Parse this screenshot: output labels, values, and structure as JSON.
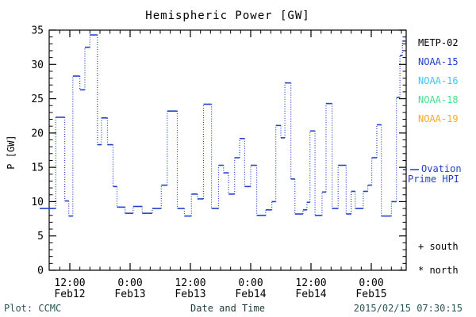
{
  "footer": {
    "left": "Plot: CCMC",
    "right": "2015/02/15 07:30:15"
  },
  "legend": {
    "satellites": [
      {
        "label": "METP-02",
        "color": "#000000"
      },
      {
        "label": "NOAA-15",
        "color": "#2240cc"
      },
      {
        "label": "NOAA-16",
        "color": "#3cc8f5"
      },
      {
        "label": "NOAA-18",
        "color": "#46e08c"
      },
      {
        "label": "NOAA-19",
        "color": "#ffa726"
      }
    ],
    "ovation": {
      "line1": "Ovation",
      "line2": "Prime HPI",
      "color": "#2240cc"
    },
    "south_marker": "+ south",
    "north_marker": "* north"
  },
  "chart_data": {
    "type": "line",
    "step": true,
    "title": "Hemispheric Power [GW]",
    "xlabel": "Date and Time",
    "ylabel": "P [GW]",
    "ylim": [
      0,
      35
    ],
    "grid": false,
    "legend_position": "right-outside",
    "line_color": "#2240cc",
    "y_major_ticks": [
      0,
      5,
      10,
      15,
      20,
      25,
      30,
      35
    ],
    "y_minor_step": 1,
    "x_major_ticks": [
      {
        "hours": 12,
        "time": "12:00",
        "date": "Feb12"
      },
      {
        "hours": 24,
        "time": "0:00",
        "date": "Feb13"
      },
      {
        "hours": 36,
        "time": "12:00",
        "date": "Feb13"
      },
      {
        "hours": 48,
        "time": "0:00",
        "date": "Feb14"
      },
      {
        "hours": 60,
        "time": "12:00",
        "date": "Feb14"
      },
      {
        "hours": 72,
        "time": "0:00",
        "date": "Feb15"
      }
    ],
    "x_minor_step_hours": 2,
    "x_range_hours": [
      7.9,
      78.9
    ],
    "x_end_hours": 78.9,
    "points_hours_gw": [
      [
        7.0,
        9.0
      ],
      [
        9.2,
        22.3
      ],
      [
        11.0,
        10.1
      ],
      [
        11.8,
        7.9
      ],
      [
        12.6,
        28.3
      ],
      [
        14.0,
        26.3
      ],
      [
        15.0,
        32.5
      ],
      [
        16.0,
        34.3
      ],
      [
        17.5,
        18.3
      ],
      [
        18.3,
        22.2
      ],
      [
        19.5,
        18.3
      ],
      [
        20.6,
        12.2
      ],
      [
        21.4,
        9.2
      ],
      [
        23.0,
        8.3
      ],
      [
        24.6,
        9.3
      ],
      [
        26.4,
        8.3
      ],
      [
        28.4,
        9.0
      ],
      [
        30.2,
        12.4
      ],
      [
        31.4,
        23.2
      ],
      [
        33.4,
        9.0
      ],
      [
        34.8,
        7.9
      ],
      [
        36.2,
        11.1
      ],
      [
        37.4,
        10.4
      ],
      [
        38.6,
        24.2
      ],
      [
        40.2,
        9.0
      ],
      [
        41.6,
        15.3
      ],
      [
        42.6,
        14.2
      ],
      [
        43.6,
        11.1
      ],
      [
        44.8,
        16.4
      ],
      [
        45.8,
        19.2
      ],
      [
        46.8,
        12.2
      ],
      [
        48.0,
        15.3
      ],
      [
        49.2,
        8.0
      ],
      [
        51.0,
        8.8
      ],
      [
        52.2,
        10.0
      ],
      [
        53.0,
        21.1
      ],
      [
        54.0,
        19.3
      ],
      [
        54.8,
        27.3
      ],
      [
        56.0,
        13.3
      ],
      [
        56.8,
        8.2
      ],
      [
        58.4,
        8.8
      ],
      [
        59.2,
        9.9
      ],
      [
        59.8,
        20.3
      ],
      [
        60.8,
        8.0
      ],
      [
        62.2,
        11.4
      ],
      [
        63.0,
        24.3
      ],
      [
        64.2,
        9.0
      ],
      [
        65.4,
        15.3
      ],
      [
        67.0,
        8.2
      ],
      [
        68.0,
        11.5
      ],
      [
        68.8,
        9.0
      ],
      [
        70.4,
        11.5
      ],
      [
        71.3,
        12.4
      ],
      [
        72.1,
        16.4
      ],
      [
        73.1,
        21.2
      ],
      [
        74.0,
        7.9
      ],
      [
        76.0,
        10.0
      ],
      [
        77.0,
        25.2
      ],
      [
        77.7,
        31.3
      ],
      [
        78.2,
        33.4
      ]
    ]
  }
}
